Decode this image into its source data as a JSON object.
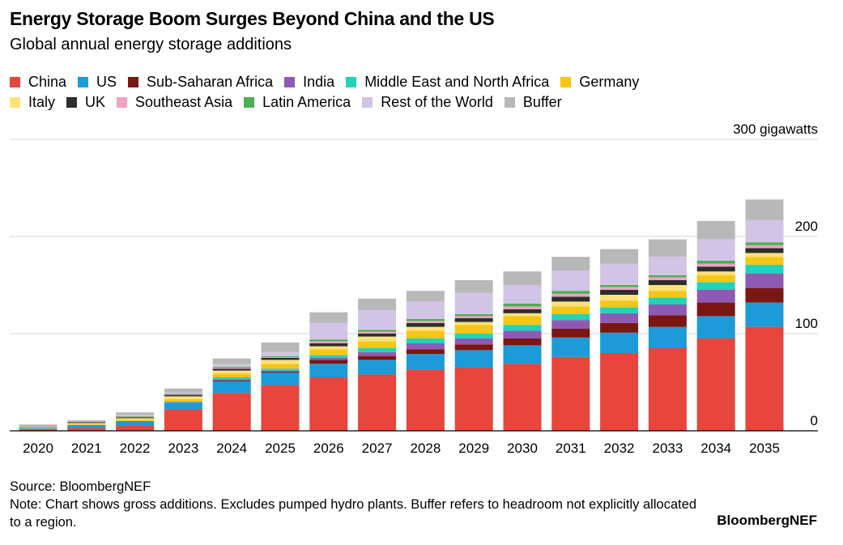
{
  "header": {
    "title": "Energy Storage Boom Surges Beyond China and the US",
    "subtitle": "Global annual energy storage additions"
  },
  "legend": {
    "rows": [
      [
        {
          "name": "China",
          "color": "#e8453c"
        },
        {
          "name": "US",
          "color": "#1c9bd8"
        },
        {
          "name": "Sub-Saharan Africa",
          "color": "#7a1712"
        },
        {
          "name": "India",
          "color": "#8e5ab4"
        },
        {
          "name": "Middle East and North Africa",
          "color": "#21d3b8"
        },
        {
          "name": "Germany",
          "color": "#f5c617"
        }
      ],
      [
        {
          "name": "Italy",
          "color": "#fde27a"
        },
        {
          "name": "UK",
          "color": "#2d2d2d"
        },
        {
          "name": "Southeast Asia",
          "color": "#f0a1c4"
        },
        {
          "name": "Latin America",
          "color": "#4caf50"
        },
        {
          "name": "Rest of the World",
          "color": "#d2c4e6"
        },
        {
          "name": "Buffer",
          "color": "#b8b8b8"
        }
      ]
    ]
  },
  "chart_data": {
    "type": "bar",
    "stacked": true,
    "categories": [
      "2020",
      "2021",
      "2022",
      "2023",
      "2024",
      "2025",
      "2026",
      "2027",
      "2028",
      "2029",
      "2030",
      "2031",
      "2032",
      "2033",
      "2034",
      "2035"
    ],
    "y_unit_label": "300 gigawatts",
    "yticks": [
      {
        "value": 0,
        "label": "0"
      },
      {
        "value": 100,
        "label": "100"
      },
      {
        "value": 200,
        "label": "200"
      },
      {
        "value": 300,
        "label": "300 gigawatts"
      }
    ],
    "ylim": [
      0,
      300
    ],
    "grid": true,
    "series": [
      {
        "name": "China",
        "color": "#e8453c",
        "values": [
          1.5,
          3,
          5,
          22,
          39,
          47,
          55,
          58,
          63,
          65,
          69,
          76,
          80,
          85,
          95,
          107
        ]
      },
      {
        "name": "US",
        "color": "#1c9bd8",
        "values": [
          1,
          3,
          5,
          7,
          12,
          13,
          14,
          15,
          16,
          18,
          19,
          20,
          21,
          22,
          23,
          25
        ]
      },
      {
        "name": "Sub-Saharan Africa",
        "color": "#7a1712",
        "values": [
          0,
          0,
          0,
          0,
          1,
          1,
          4,
          4,
          5,
          6,
          7,
          9,
          10,
          12,
          14,
          15
        ]
      },
      {
        "name": "India",
        "color": "#8e5ab4",
        "values": [
          0,
          0,
          0,
          0.5,
          1,
          1,
          2,
          4,
          6,
          6,
          8,
          9,
          10,
          11,
          13,
          15
        ]
      },
      {
        "name": "Middle East and North Africa",
        "color": "#21d3b8",
        "values": [
          0,
          0,
          0,
          0.5,
          2,
          2,
          3,
          4,
          5,
          5,
          6,
          6,
          6,
          7,
          8,
          9
        ]
      },
      {
        "name": "Germany",
        "color": "#f5c617",
        "values": [
          0.5,
          1,
          1.5,
          2.5,
          4,
          5,
          6,
          7,
          8,
          9,
          9,
          8,
          7,
          7,
          7,
          8
        ]
      },
      {
        "name": "Italy",
        "color": "#fde27a",
        "values": [
          0.5,
          1,
          1.5,
          3,
          3,
          4,
          3,
          5,
          4,
          3,
          3,
          5,
          6,
          6,
          4,
          4
        ]
      },
      {
        "name": "UK",
        "color": "#2d2d2d",
        "values": [
          0.5,
          1,
          1,
          1.5,
          2,
          2,
          3,
          3,
          4,
          4,
          4,
          5,
          5,
          5,
          5,
          5
        ]
      },
      {
        "name": "Southeast Asia",
        "color": "#f0a1c4",
        "values": [
          0,
          0,
          0.5,
          0.5,
          1,
          1,
          2,
          2,
          2,
          2,
          3,
          3,
          3,
          3,
          3,
          3
        ]
      },
      {
        "name": "Latin America",
        "color": "#4caf50",
        "values": [
          0,
          0,
          0.5,
          0.5,
          1,
          1,
          2,
          2,
          2,
          2,
          3,
          3,
          2,
          2,
          3,
          3
        ]
      },
      {
        "name": "Rest of the World",
        "color": "#d2c4e6",
        "values": [
          0.5,
          0.5,
          1,
          1.5,
          2.5,
          4,
          17,
          20,
          18,
          22,
          19,
          21,
          22,
          19,
          22,
          23
        ]
      },
      {
        "name": "Buffer",
        "color": "#b8b8b8",
        "values": [
          2,
          1.5,
          3,
          4,
          6,
          10,
          11,
          12,
          11,
          13,
          14,
          14,
          15,
          18,
          19,
          21
        ]
      }
    ]
  },
  "footer": {
    "source": "Source: BloombergNEF",
    "note": "Note: Chart shows gross additions. Excludes pumped hydro plants. Buffer refers to headroom not explicitly allocated to a region.",
    "brand": "BloombergNEF"
  }
}
